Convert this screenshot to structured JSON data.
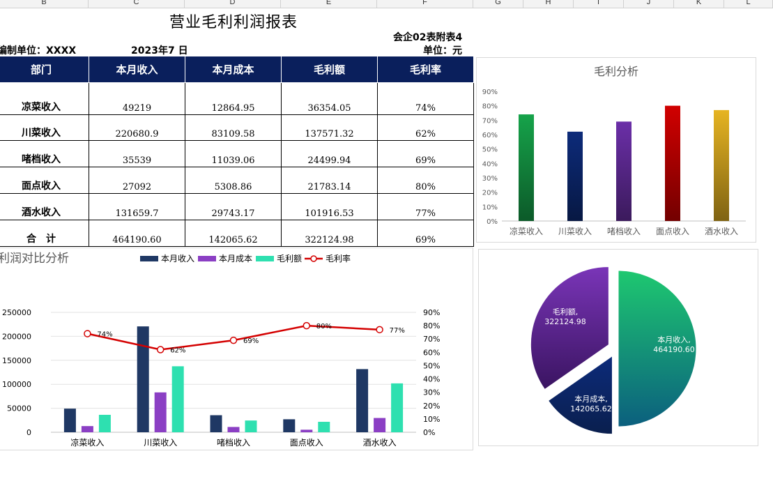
{
  "columns": [
    "B",
    "C",
    "D",
    "E",
    "F",
    "G",
    "H",
    "I",
    "J",
    "K",
    "L"
  ],
  "report": {
    "title": "营业毛利利润报表",
    "form_code": "会企02表附表4",
    "org_label": "编制单位：XXXX",
    "date_label": "2023年7 日",
    "unit_label": "单位：元",
    "headers": [
      "部门",
      "本月收入",
      "本月成本",
      "毛利额",
      "毛利率"
    ],
    "rows": [
      [
        "凉菜收入",
        "49219",
        "12864.95",
        "36354.05",
        "74%"
      ],
      [
        "川菜收入",
        "220680.9",
        "83109.58",
        "137571.32",
        "62%"
      ],
      [
        "啫档收入",
        "35539",
        "11039.06",
        "24499.94",
        "69%"
      ],
      [
        "面点收入",
        "27092",
        "5308.86",
        "21783.14",
        "80%"
      ],
      [
        "酒水收入",
        "131659.7",
        "29743.17",
        "101916.53",
        "77%"
      ],
      [
        "合　计",
        "464190.60",
        "142065.62",
        "322124.98",
        "69%"
      ]
    ]
  },
  "chart_data": [
    {
      "type": "bar",
      "title": "毛利分析",
      "categories": [
        "凉菜收入",
        "川菜收入",
        "啫档收入",
        "面点收入",
        "酒水收入"
      ],
      "values": [
        0.74,
        0.62,
        0.69,
        0.8,
        0.77
      ],
      "ylim": [
        0,
        0.9
      ],
      "ytick_labels": [
        "0%",
        "10%",
        "20%",
        "30%",
        "40%",
        "50%",
        "60%",
        "70%",
        "80%",
        "90%"
      ],
      "colors": [
        "#16a34a",
        "#0d2b7a",
        "#6b2fa8",
        "#d10000",
        "#e6b422"
      ],
      "grid": false
    },
    {
      "type": "bar",
      "title": "利润对比分析",
      "categories": [
        "凉菜收入",
        "川菜收入",
        "啫档收入",
        "面点收入",
        "酒水收入"
      ],
      "series": [
        {
          "name": "本月收入",
          "values": [
            49219,
            220680.9,
            35539,
            27092,
            131659.7
          ],
          "color": "#1f3864"
        },
        {
          "name": "本月成本",
          "values": [
            12864.95,
            83109.58,
            11039.06,
            5308.86,
            29743.17
          ],
          "color": "#8b3fc4"
        },
        {
          "name": "毛利额",
          "values": [
            36354.05,
            137571.32,
            24499.94,
            21783.14,
            101916.53
          ],
          "color": "#2ee0b0"
        },
        {
          "name": "毛利率",
          "type": "line",
          "axis": "right",
          "values": [
            0.74,
            0.62,
            0.69,
            0.8,
            0.77
          ],
          "labels": [
            "74%",
            "62%",
            "69%",
            "80%",
            "77%"
          ],
          "color": "#d40000"
        }
      ],
      "ylim": [
        0,
        250000
      ],
      "ytick_labels": [
        "0",
        "50000",
        "100000",
        "150000",
        "200000",
        "250000"
      ],
      "y2lim": [
        0,
        0.9
      ],
      "y2tick_labels": [
        "0%",
        "10%",
        "20%",
        "30%",
        "40%",
        "50%",
        "60%",
        "70%",
        "80%",
        "90%"
      ],
      "legend": "top",
      "grid": true
    },
    {
      "type": "pie",
      "slices": [
        {
          "label": "本月收入,",
          "value": 464190.6,
          "value_label": "464190.60",
          "color": "#1ec870"
        },
        {
          "label": "本月成本,",
          "value": 142065.62,
          "value_label": "142065.62",
          "color": "#0d2b7a"
        },
        {
          "label": "毛利额,",
          "value": 322124.98,
          "value_label": "322124.98",
          "color": "#7a35b8"
        }
      ]
    }
  ]
}
